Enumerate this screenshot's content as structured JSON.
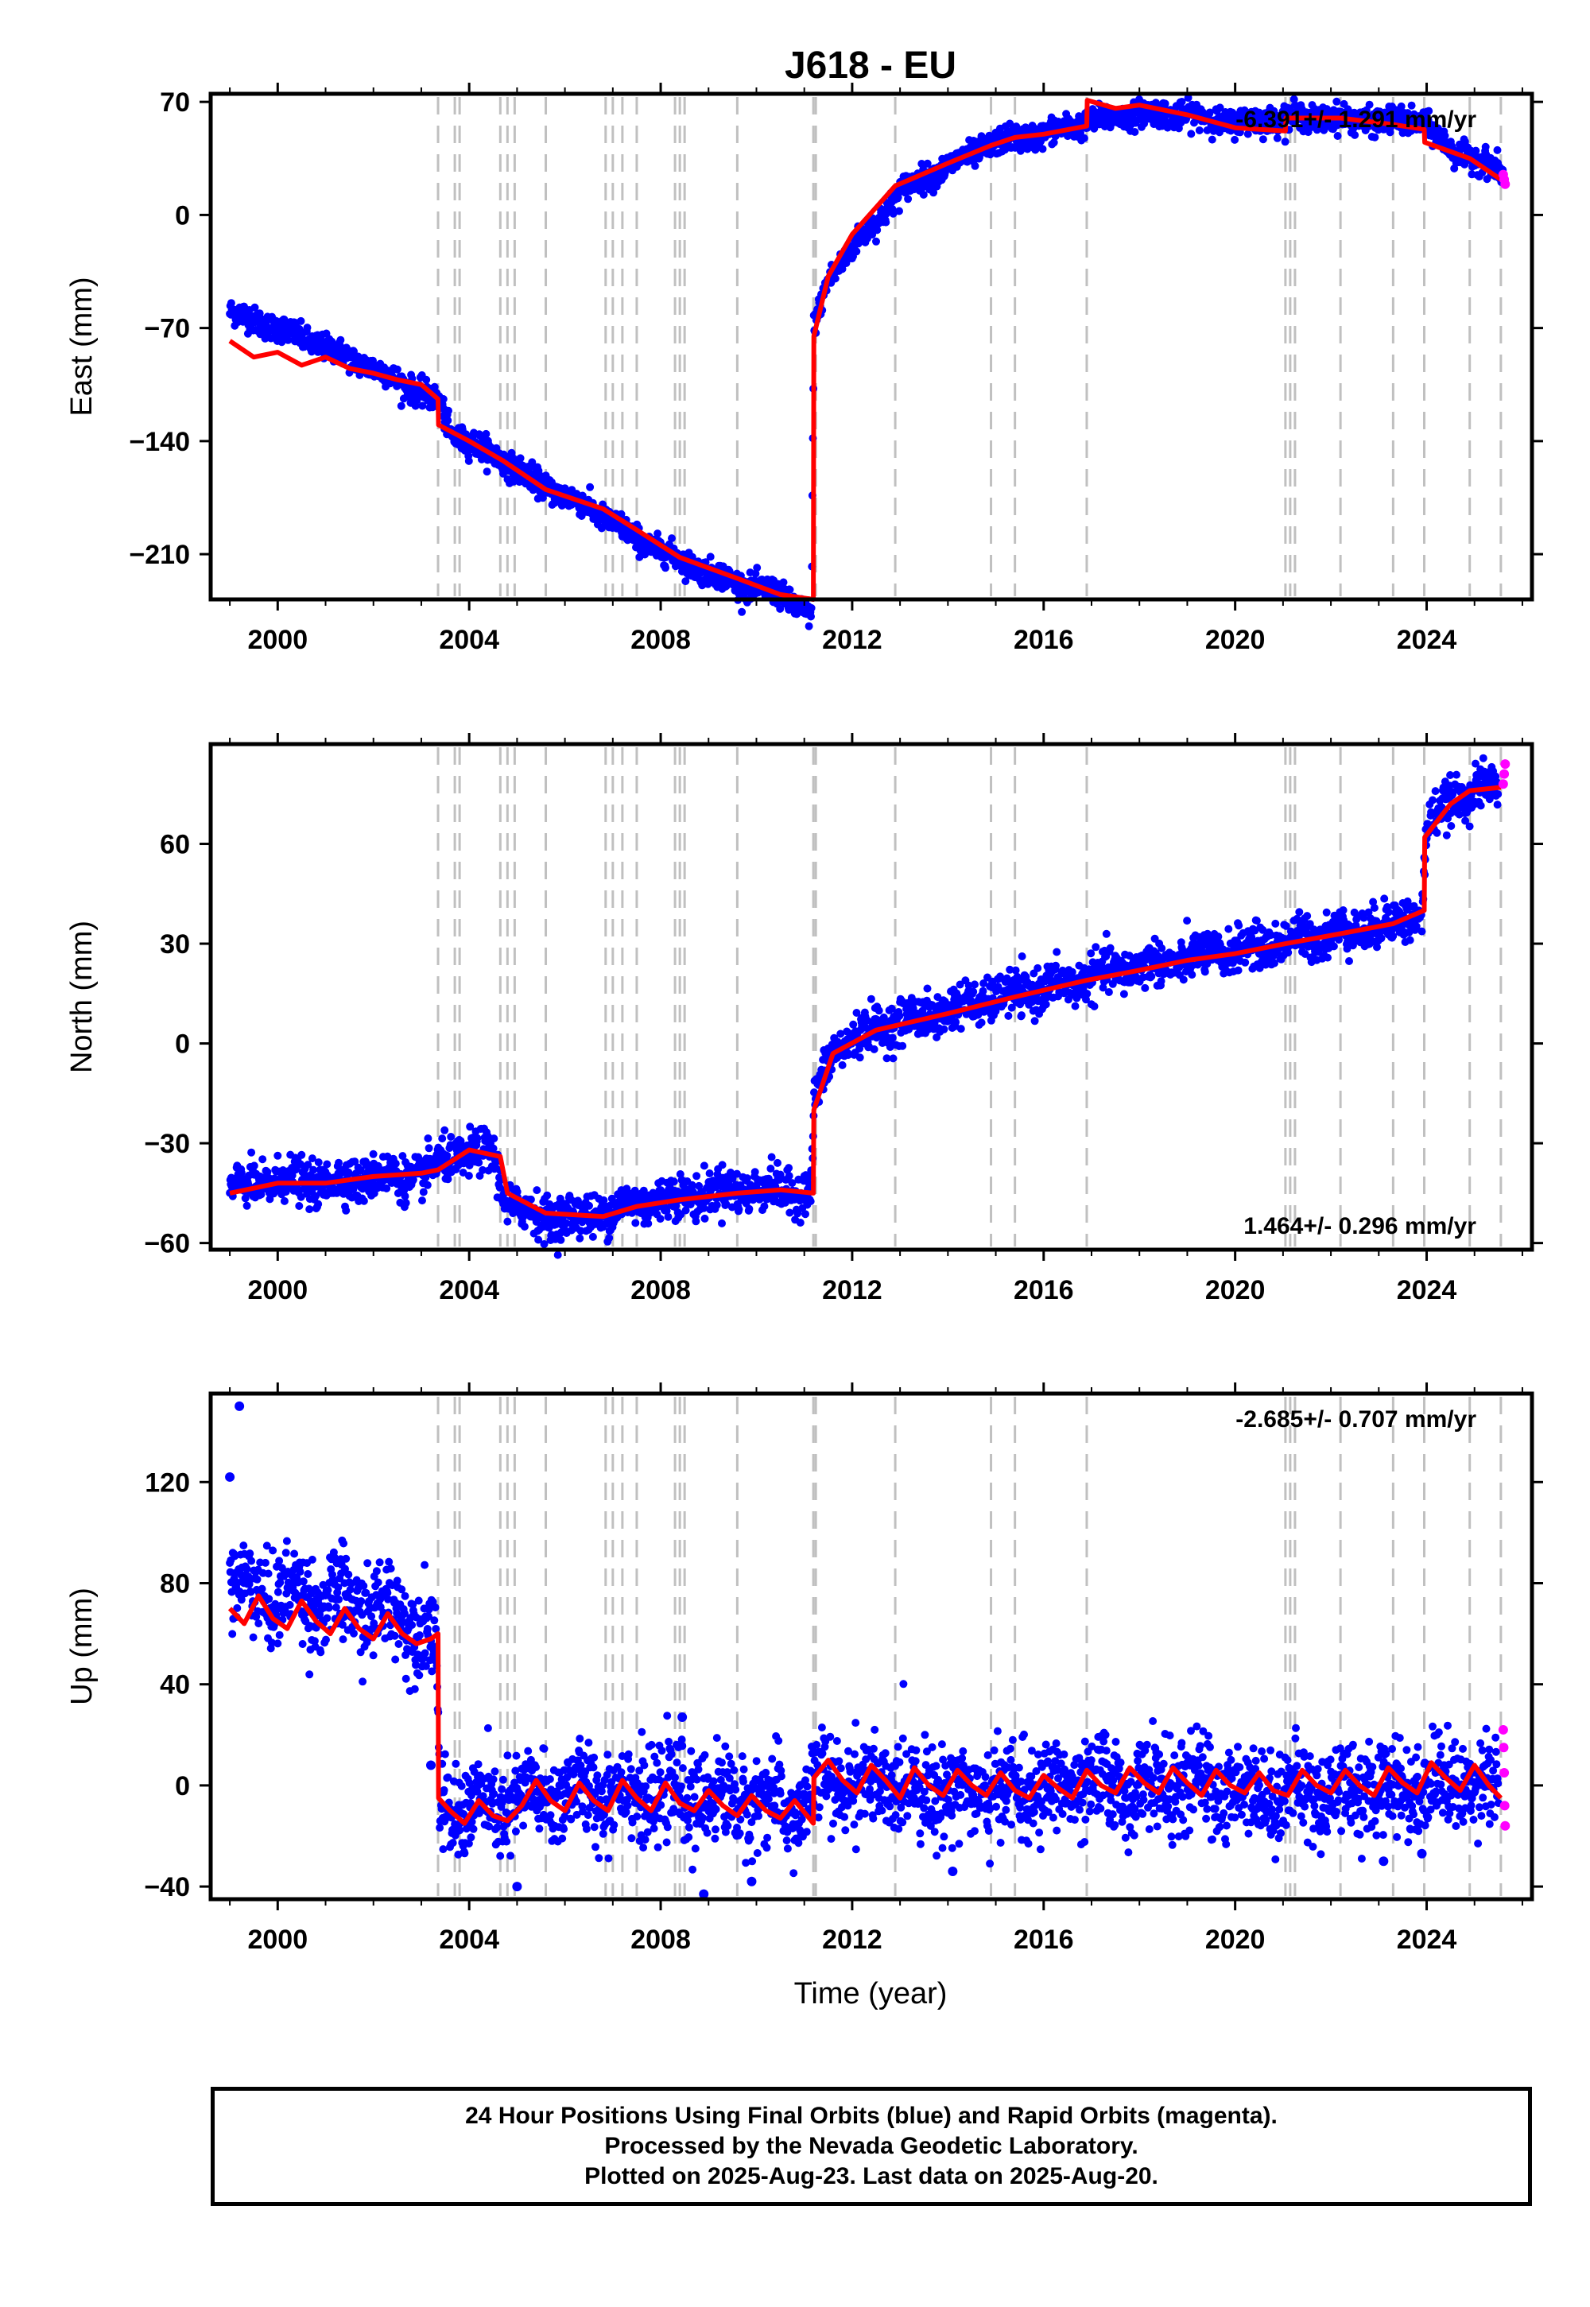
{
  "title": "J618 - EU",
  "xlabel": "Time (year)",
  "footer": {
    "line1": "24 Hour Positions Using Final Orbits (blue) and Rapid Orbits (magenta).",
    "line2": "Processed by the Nevada Geodetic Laboratory.",
    "line3": "Plotted on 2025-Aug-23. Last data on 2025-Aug-20."
  },
  "colors": {
    "final_orbits": "#0000ff",
    "rapid_orbits": "#ff00ff",
    "model_fit": "#ff0000",
    "event_lines": "#c0c0c0"
  },
  "chart_data": [
    {
      "type": "scatter",
      "name_panel": "east",
      "ylabel": "East (mm)",
      "xlim": [
        1998.6,
        2026.2
      ],
      "ylim": [
        -238,
        75
      ],
      "yticks": [
        70,
        0,
        -70,
        -140,
        -210
      ],
      "xticks": [
        2000,
        2004,
        2008,
        2012,
        2016,
        2020,
        2024
      ],
      "rate_label": "-6.391+/- 1.291 mm/yr",
      "rate_position": "top-right",
      "event_lines": [
        2003.35,
        2003.7,
        2003.8,
        2004.65,
        2004.8,
        2004.95,
        2005.6,
        2006.85,
        2007.0,
        2007.2,
        2007.5,
        2008.3,
        2008.4,
        2008.5,
        2009.6,
        2011.19,
        2011.24,
        2012.9,
        2014.9,
        2015.4,
        2016.9,
        2021.05,
        2021.15,
        2021.25,
        2022.2,
        2023.3,
        2023.95,
        2024.9,
        2025.55
      ],
      "final_series": {
        "name": "Final Orbits",
        "x": [
          1999.0,
          2000.0,
          2001.0,
          2002.0,
          2003.0,
          2003.4,
          2003.6,
          2004.5,
          2005.5,
          2006.5,
          2007.5,
          2008.5,
          2009.5,
          2010.5,
          2011.15,
          2011.2,
          2011.5,
          2012.0,
          2012.5,
          2013.0,
          2014.0,
          2015.0,
          2016.0,
          2017.0,
          2018.0,
          2019.0,
          2020.0,
          2021.0,
          2022.0,
          2023.0,
          2023.9,
          2024.5,
          2025.0,
          2025.5,
          2025.6
        ],
        "y": [
          -60,
          -70,
          -82,
          -95,
          -110,
          -117,
          -135,
          -148,
          -167,
          -181,
          -200,
          -215,
          -227,
          -235,
          -248,
          -70,
          -40,
          -20,
          -5,
          15,
          30,
          45,
          50,
          58,
          63,
          62,
          57,
          60,
          60,
          58,
          58,
          40,
          35,
          28,
          25
        ]
      },
      "rapid_series": {
        "name": "Rapid Orbits",
        "x": [
          2025.6,
          2025.62,
          2025.64
        ],
        "y": [
          25,
          22,
          19
        ]
      },
      "fit_series": {
        "name": "Model",
        "x": [
          1999.0,
          1999.5,
          2000.0,
          2000.5,
          2001.0,
          2001.5,
          2002.0,
          2002.5,
          2003.0,
          2003.35,
          2003.36,
          2004.0,
          2004.7,
          2005.6,
          2006.8,
          2007.5,
          2008.4,
          2009.6,
          2010.5,
          2011.19,
          2011.2,
          2011.5,
          2012.0,
          2012.9,
          2014.0,
          2014.9,
          2015.4,
          2016.0,
          2016.9,
          2016.91,
          2017.5,
          2018.0,
          2019.0,
          2020.0,
          2021.05,
          2021.06,
          2022.2,
          2023.3,
          2023.95,
          2023.96,
          2024.9,
          2025.55
        ],
        "y": [
          -78,
          -88,
          -85,
          -93,
          -88,
          -95,
          -98,
          -102,
          -105,
          -114,
          -130,
          -140,
          -152,
          -170,
          -182,
          -195,
          -212,
          -225,
          -235,
          -238,
          -75,
          -38,
          -12,
          18,
          32,
          43,
          48,
          50,
          55,
          71,
          66,
          68,
          62,
          54,
          52,
          60,
          60,
          56,
          53,
          45,
          35,
          22
        ]
      }
    },
    {
      "type": "scatter",
      "name_panel": "north",
      "ylabel": "North (mm)",
      "xlim": [
        1998.6,
        2026.2
      ],
      "ylim": [
        -62,
        90
      ],
      "yticks": [
        60,
        30,
        0,
        -30,
        -60
      ],
      "xticks": [
        2000,
        2004,
        2008,
        2012,
        2016,
        2020,
        2024
      ],
      "rate_label": "1.464+/- 0.296 mm/yr",
      "rate_position": "bottom-right",
      "event_lines": [
        2003.35,
        2003.7,
        2003.8,
        2004.65,
        2004.8,
        2004.95,
        2005.6,
        2006.85,
        2007.0,
        2007.2,
        2007.5,
        2008.3,
        2008.4,
        2008.5,
        2009.6,
        2011.19,
        2011.24,
        2012.9,
        2014.9,
        2015.4,
        2016.9,
        2021.05,
        2021.15,
        2021.25,
        2022.2,
        2023.3,
        2023.95,
        2024.9,
        2025.55
      ],
      "final_series": {
        "name": "Final Orbits",
        "x": [
          1999.0,
          2000.0,
          2001.0,
          2002.0,
          2003.0,
          2003.6,
          2004.5,
          2004.8,
          2005.5,
          2006.5,
          2007.5,
          2008.5,
          2009.5,
          2010.5,
          2011.15,
          2011.2,
          2011.6,
          2012.5,
          2013.5,
          2014.5,
          2015.5,
          2016.5,
          2017.5,
          2018.5,
          2019.5,
          2020.5,
          2021.5,
          2022.5,
          2023.5,
          2023.9,
          2024.0,
          2024.5,
          2025.0,
          2025.5
        ],
        "y": [
          -44,
          -41,
          -42,
          -40,
          -40,
          -34,
          -33,
          -48,
          -52,
          -52,
          -48,
          -46,
          -44,
          -44,
          -45,
          -18,
          -2,
          5,
          8,
          12,
          15,
          18,
          22,
          24,
          27,
          29,
          32,
          34,
          37,
          39,
          65,
          73,
          76,
          78
        ]
      },
      "rapid_series": {
        "name": "Rapid Orbits",
        "x": [
          2025.6,
          2025.62,
          2025.64
        ],
        "y": [
          78,
          81,
          84
        ]
      },
      "fit_series": {
        "name": "Model",
        "x": [
          1999.0,
          2000.0,
          2001.0,
          2002.0,
          2003.0,
          2003.35,
          2004.0,
          2004.65,
          2004.8,
          2005.6,
          2006.8,
          2007.5,
          2008.4,
          2009.6,
          2010.5,
          2011.19,
          2011.2,
          2011.6,
          2012.5,
          2014.0,
          2015.4,
          2016.9,
          2018.0,
          2019.0,
          2020.0,
          2021.05,
          2022.2,
          2023.3,
          2023.95,
          2023.96,
          2024.5,
          2024.9,
          2025.55
        ],
        "y": [
          -45,
          -42,
          -42,
          -40,
          -39,
          -38,
          -32,
          -34,
          -45,
          -51,
          -52,
          -49,
          -47,
          -45,
          -44,
          -45,
          -20,
          -3,
          4,
          9,
          14,
          19,
          22,
          25,
          27,
          30,
          33,
          36,
          40,
          62,
          72,
          76,
          77
        ]
      }
    },
    {
      "type": "scatter",
      "name_panel": "up",
      "ylabel": "Up (mm)",
      "xlim": [
        1998.6,
        2026.2
      ],
      "ylim": [
        -45,
        155
      ],
      "yticks": [
        120,
        80,
        40,
        0,
        -40
      ],
      "xticks": [
        2000,
        2004,
        2008,
        2012,
        2016,
        2020,
        2024
      ],
      "rate_label": "-2.685+/- 0.707 mm/yr",
      "rate_position": "top-right",
      "event_lines": [
        2003.35,
        2003.7,
        2003.8,
        2004.65,
        2004.8,
        2004.95,
        2005.6,
        2006.85,
        2007.0,
        2007.2,
        2007.5,
        2008.3,
        2008.4,
        2008.5,
        2009.6,
        2011.19,
        2011.24,
        2012.9,
        2014.9,
        2015.4,
        2016.9,
        2021.05,
        2021.15,
        2021.25,
        2022.2,
        2023.3,
        2023.95,
        2024.9,
        2025.55
      ],
      "final_series": {
        "name": "Final Orbits",
        "x": [
          1999.0,
          1999.5,
          2000.0,
          2000.5,
          2001.0,
          2001.5,
          2002.0,
          2002.5,
          2003.0,
          2003.3,
          2003.4,
          2004.0,
          2004.5,
          2005.0,
          2006.0,
          2007.0,
          2008.0,
          2009.0,
          2010.0,
          2011.0,
          2011.3,
          2012.0,
          2013.0,
          2014.0,
          2015.0,
          2016.0,
          2017.0,
          2018.0,
          2019.0,
          2020.0,
          2021.0,
          2022.0,
          2023.0,
          2024.0,
          2025.0,
          2025.5
        ],
        "y": [
          75,
          80,
          72,
          78,
          70,
          74,
          68,
          70,
          62,
          58,
          -12,
          -8,
          -10,
          -6,
          -3,
          -2,
          -4,
          -5,
          -6,
          -10,
          2,
          0,
          0,
          -2,
          -3,
          -2,
          0,
          -1,
          0,
          -2,
          -3,
          -2,
          -1,
          0,
          2,
          0
        ]
      },
      "outliers": {
        "x": [
          1999.2,
          1999.0,
          2003.2,
          2005.0,
          2008.45,
          2008.9,
          2009.9,
          2014.1,
          2023.1,
          2023.9
        ],
        "y": [
          150,
          122,
          8,
          -40,
          27,
          -43,
          -38,
          -34,
          -30,
          -27
        ]
      },
      "rapid_series": {
        "name": "Rapid Orbits",
        "x": [
          2025.6,
          2025.61,
          2025.62,
          2025.63,
          2025.64
        ],
        "y": [
          22,
          15,
          5,
          -8,
          -16
        ]
      },
      "fit_series": {
        "name": "Model",
        "x": [
          1999.0,
          1999.3,
          1999.6,
          1999.9,
          2000.2,
          2000.5,
          2000.8,
          2001.1,
          2001.4,
          2001.7,
          2002.0,
          2002.3,
          2002.6,
          2002.9,
          2003.2,
          2003.35,
          2003.36,
          2003.6,
          2003.9,
          2004.2,
          2004.5,
          2004.8,
          2005.1,
          2005.4,
          2005.7,
          2006.0,
          2006.3,
          2006.6,
          2006.9,
          2007.2,
          2007.5,
          2007.8,
          2008.1,
          2008.4,
          2008.7,
          2009.0,
          2009.3,
          2009.6,
          2009.9,
          2010.2,
          2010.5,
          2010.8,
          2011.19,
          2011.2,
          2011.5,
          2011.8,
          2012.1,
          2012.4,
          2012.7,
          2013.0,
          2013.3,
          2013.6,
          2013.9,
          2014.2,
          2014.5,
          2014.8,
          2015.1,
          2015.4,
          2015.7,
          2016.0,
          2016.3,
          2016.6,
          2016.9,
          2017.2,
          2017.5,
          2017.8,
          2018.1,
          2018.4,
          2018.7,
          2019.0,
          2019.3,
          2019.6,
          2019.9,
          2020.2,
          2020.5,
          2020.8,
          2021.1,
          2021.4,
          2021.7,
          2022.0,
          2022.3,
          2022.6,
          2022.9,
          2023.2,
          2023.5,
          2023.8,
          2024.1,
          2024.4,
          2024.7,
          2025.0,
          2025.3,
          2025.55
        ],
        "y": [
          70,
          64,
          75,
          66,
          62,
          73,
          65,
          60,
          70,
          62,
          58,
          68,
          60,
          56,
          58,
          60,
          -5,
          -10,
          -15,
          -6,
          -12,
          -14,
          -8,
          2,
          -6,
          -10,
          1,
          -6,
          -10,
          2,
          -5,
          -10,
          1,
          -7,
          -10,
          -2,
          -8,
          -12,
          -4,
          -10,
          -13,
          -6,
          -15,
          3,
          10,
          2,
          -3,
          8,
          2,
          -5,
          7,
          0,
          -4,
          6,
          0,
          -4,
          5,
          -2,
          -5,
          4,
          -1,
          -5,
          6,
          0,
          -3,
          7,
          1,
          -3,
          7,
          1,
          -4,
          6,
          0,
          -3,
          5,
          -2,
          -4,
          6,
          0,
          -3,
          6,
          0,
          -4,
          7,
          1,
          -3,
          9,
          3,
          -2,
          8,
          0,
          -5
        ]
      }
    }
  ]
}
